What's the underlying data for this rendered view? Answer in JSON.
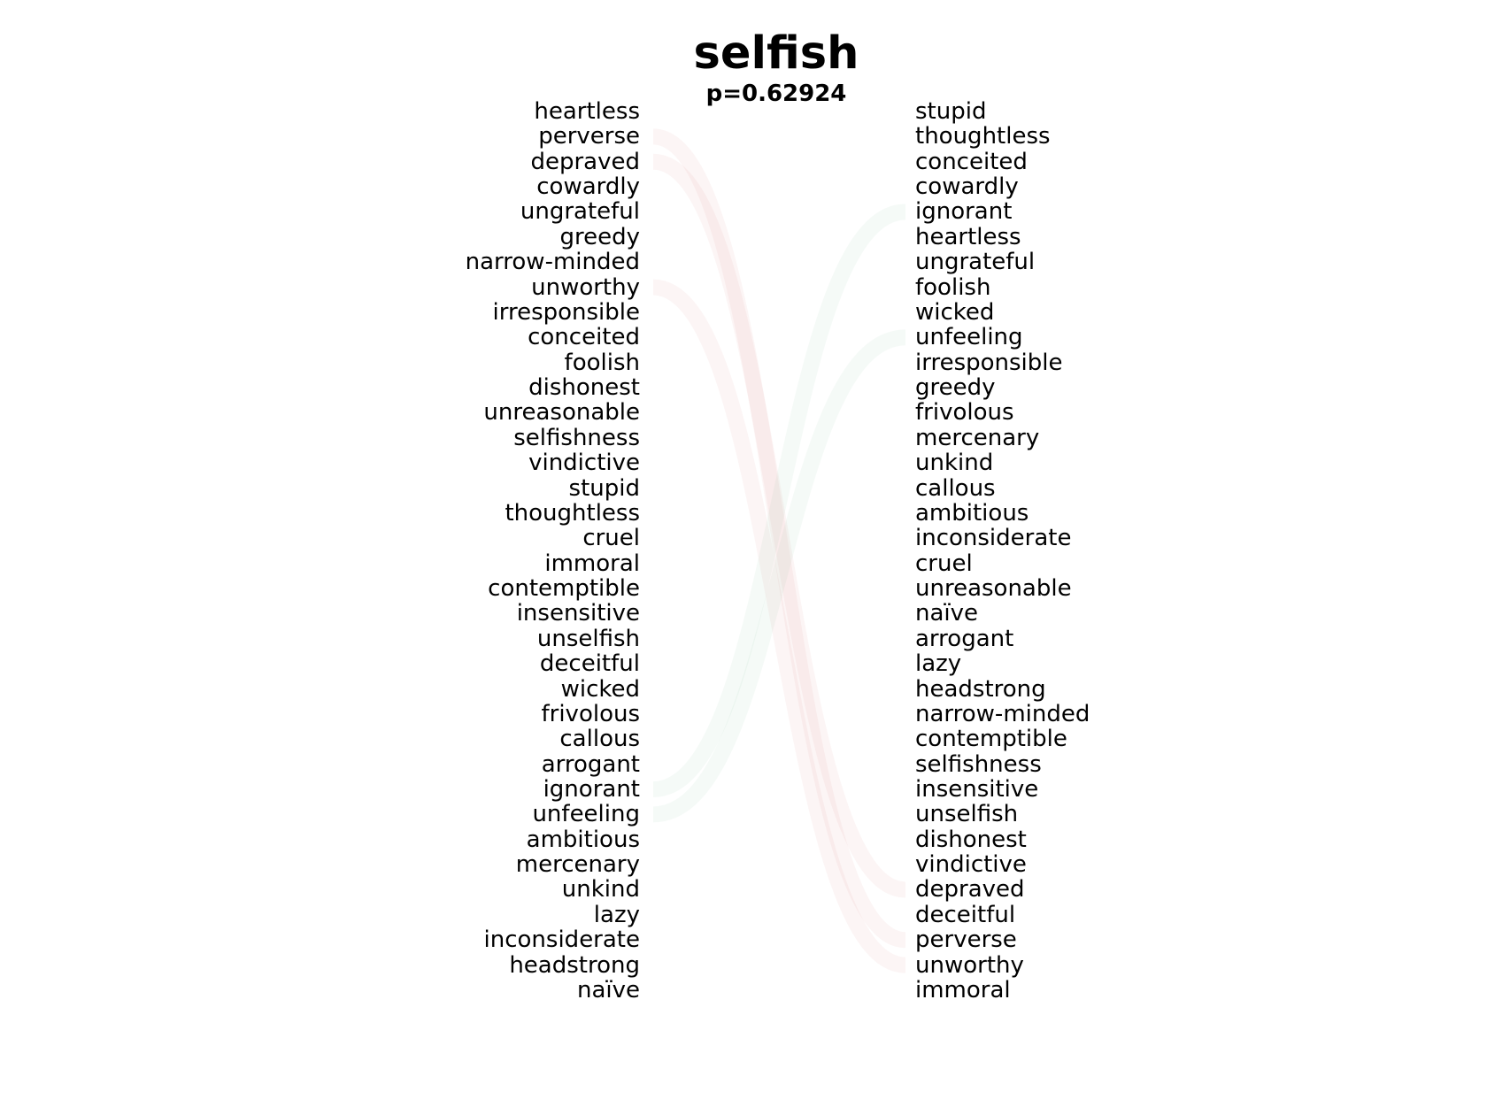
{
  "title": "selfish",
  "subtitle": "p=0.62924",
  "colors": {
    "left_links": "#d96b6b",
    "right_links": "#6bb592"
  },
  "left_words": [
    "heartless",
    "perverse",
    "depraved",
    "cowardly",
    "ungrateful",
    "greedy",
    "narrow-minded",
    "unworthy",
    "irresponsible",
    "conceited",
    "foolish",
    "dishonest",
    "unreasonable",
    "selfishness",
    "vindictive",
    "stupid",
    "thoughtless",
    "cruel",
    "immoral",
    "contemptible",
    "insensitive",
    "unselfish",
    "deceitful",
    "wicked",
    "frivolous",
    "callous",
    "arrogant",
    "ignorant",
    "unfeeling",
    "ambitious",
    "mercenary",
    "unkind",
    "lazy",
    "inconsiderate",
    "headstrong",
    "naïve"
  ],
  "right_words": [
    "stupid",
    "thoughtless",
    "conceited",
    "cowardly",
    "ignorant",
    "heartless",
    "ungrateful",
    "foolish",
    "wicked",
    "unfeeling",
    "irresponsible",
    "greedy",
    "frivolous",
    "mercenary",
    "unkind",
    "callous",
    "ambitious",
    "inconsiderate",
    "cruel",
    "unreasonable",
    "naïve",
    "arrogant",
    "lazy",
    "headstrong",
    "narrow-minded",
    "contemptible",
    "selfishness",
    "insensitive",
    "unselfish",
    "dishonest",
    "vindictive",
    "depraved",
    "deceitful",
    "perverse",
    "unworthy",
    "immoral"
  ],
  "left_links": [
    {
      "from": "perverse",
      "to": "perverse"
    },
    {
      "from": "depraved",
      "to": "depraved"
    },
    {
      "from": "unworthy",
      "to": "unworthy"
    }
  ],
  "right_links": [
    {
      "from": "ignorant",
      "to": "ignorant"
    },
    {
      "from": "unfeeling",
      "to": "unfeeling"
    }
  ]
}
